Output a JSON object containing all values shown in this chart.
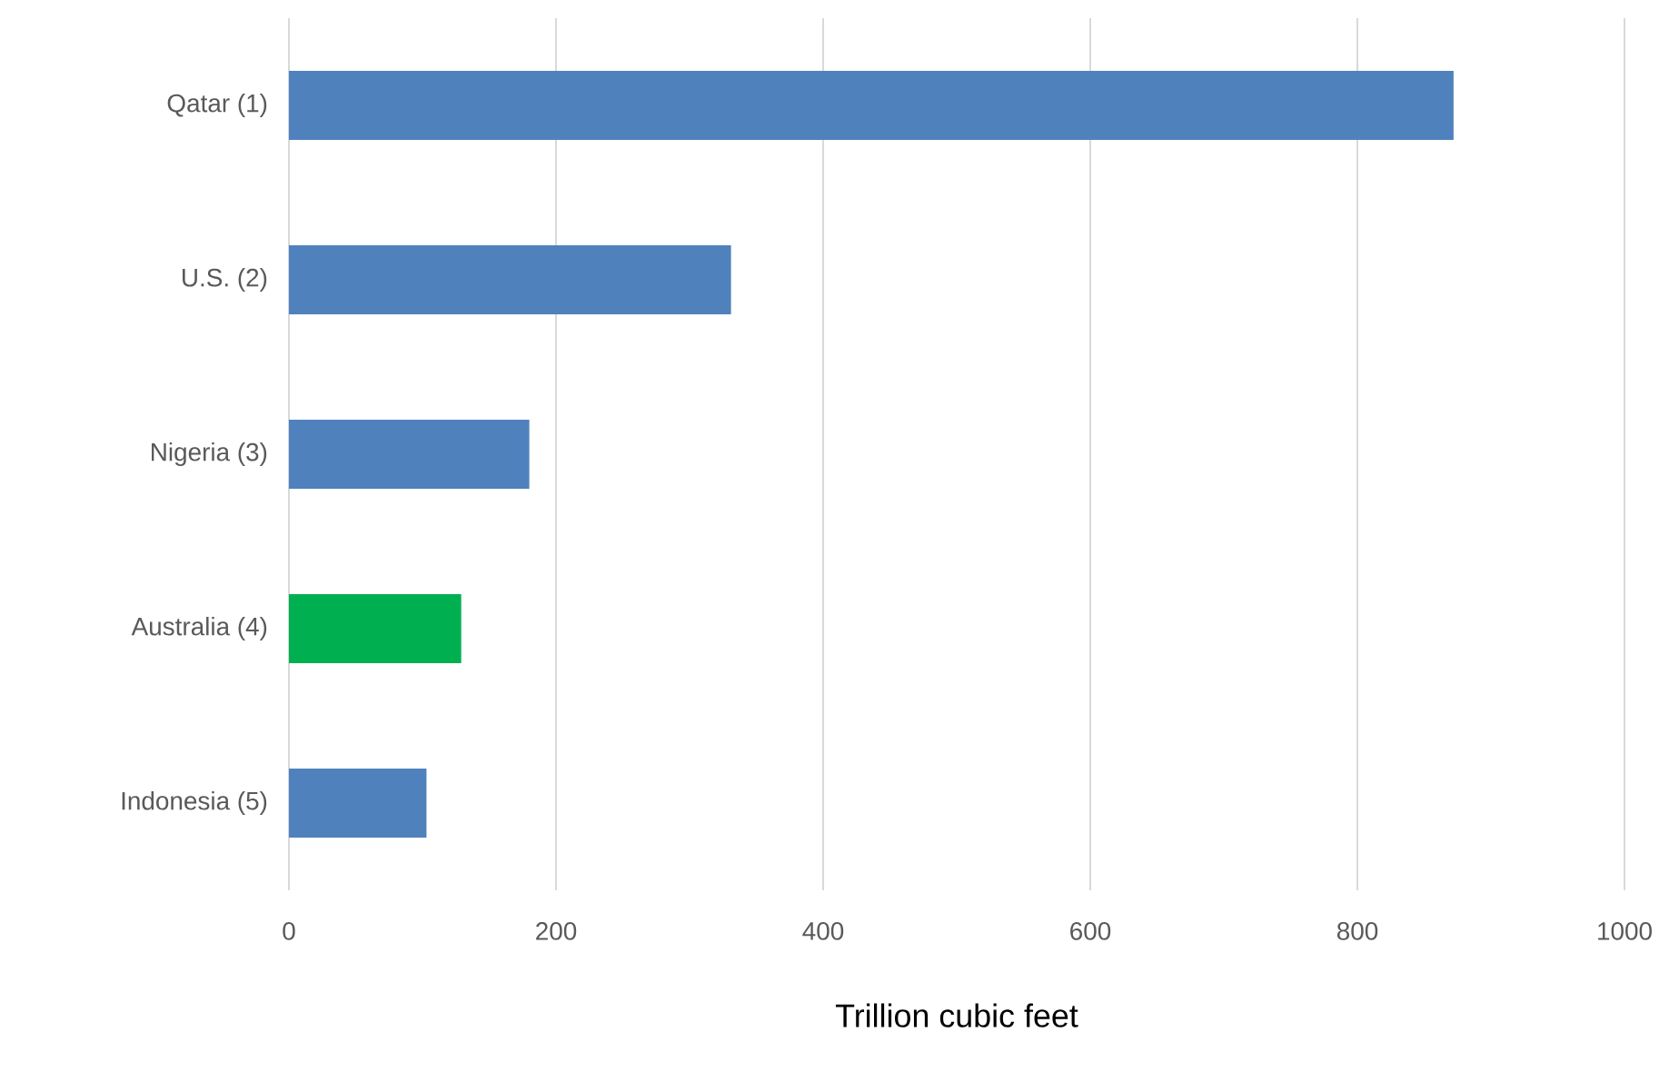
{
  "chart_data": {
    "type": "bar",
    "orientation": "horizontal",
    "xlabel": "Trillion cubic feet",
    "categories": [
      "Qatar (1)",
      "U.S. (2)",
      "Nigeria (3)",
      "Australia (4)",
      "Indonesia (5)"
    ],
    "values": [
      872,
      331,
      180,
      129,
      103
    ],
    "colors": [
      "#4f81bd",
      "#4f81bd",
      "#4f81bd",
      "#00b050",
      "#4f81bd"
    ],
    "xlim": [
      0,
      1000
    ],
    "xticks": [
      0,
      200,
      400,
      600,
      800,
      1000
    ],
    "grid": "x"
  }
}
